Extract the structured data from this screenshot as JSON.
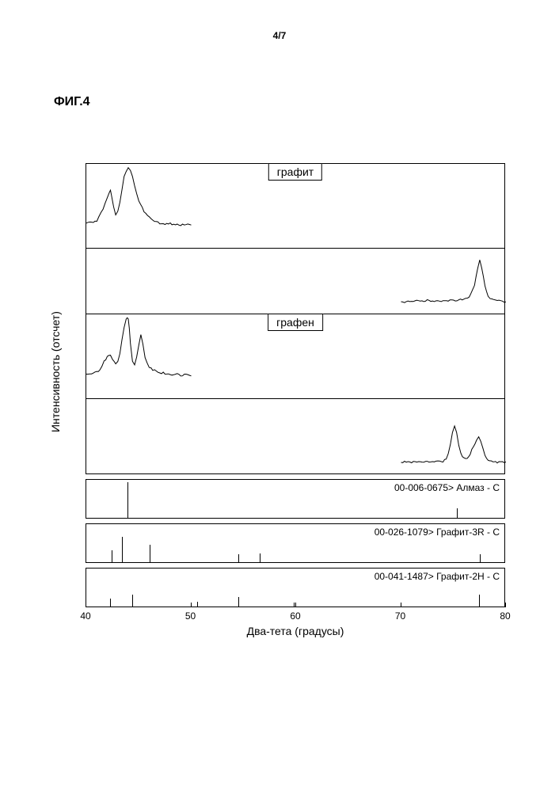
{
  "page_number": "4/7",
  "figure_label": "ФИГ.4",
  "y_axis_label": "Интенсивность (отсчет)",
  "x_axis_label": "Два-тета (градусы)",
  "x_range": [
    40,
    80
  ],
  "x_ticks": [
    40,
    50,
    60,
    70,
    80
  ],
  "panel_heights": {
    "p1": 108,
    "p2": 84,
    "p3": 108,
    "p4": 96,
    "ref1": 50,
    "ref2": 50,
    "ref3": 50
  },
  "panel_gaps": 6,
  "series_labels": {
    "graphite": "графит",
    "graphene": "графен"
  },
  "ref_labels": {
    "r1": "00-006-0675> Алмаз - С",
    "r2": "00-026-1079> Графит-3R - С",
    "r3": "00-041-1487> Графит-2H - С"
  },
  "trace_color": "#000000",
  "panel_border": "#000000",
  "background": "#ffffff",
  "label_fontsize": 14,
  "tick_fontsize": 12,
  "traces": {
    "p1": [
      [
        40,
        0.7
      ],
      [
        40.5,
        0.68
      ],
      [
        41,
        0.66
      ],
      [
        41.2,
        0.62
      ],
      [
        41.4,
        0.58
      ],
      [
        41.6,
        0.52
      ],
      [
        41.8,
        0.45
      ],
      [
        42.0,
        0.4
      ],
      [
        42.2,
        0.32
      ],
      [
        42.3,
        0.3
      ],
      [
        42.4,
        0.36
      ],
      [
        42.6,
        0.5
      ],
      [
        42.8,
        0.6
      ],
      [
        43.0,
        0.55
      ],
      [
        43.2,
        0.45
      ],
      [
        43.4,
        0.3
      ],
      [
        43.6,
        0.15
      ],
      [
        43.8,
        0.08
      ],
      [
        44.0,
        0.05
      ],
      [
        44.2,
        0.08
      ],
      [
        44.4,
        0.15
      ],
      [
        44.6,
        0.25
      ],
      [
        44.8,
        0.35
      ],
      [
        45.0,
        0.43
      ],
      [
        45.5,
        0.55
      ],
      [
        46.0,
        0.62
      ],
      [
        46.5,
        0.67
      ],
      [
        47.0,
        0.69
      ],
      [
        47.5,
        0.7
      ],
      [
        48.0,
        0.7
      ],
      [
        48.5,
        0.71
      ],
      [
        49.0,
        0.71
      ],
      [
        49.5,
        0.71
      ],
      [
        50.0,
        0.71
      ]
    ],
    "p2": [
      [
        70,
        0.8
      ],
      [
        70.5,
        0.8
      ],
      [
        71,
        0.79
      ],
      [
        71.5,
        0.78
      ],
      [
        72,
        0.79
      ],
      [
        72.5,
        0.78
      ],
      [
        73,
        0.79
      ],
      [
        73.5,
        0.78
      ],
      [
        74,
        0.79
      ],
      [
        74.5,
        0.78
      ],
      [
        75,
        0.78
      ],
      [
        75.5,
        0.77
      ],
      [
        76,
        0.76
      ],
      [
        76.5,
        0.72
      ],
      [
        77.0,
        0.55
      ],
      [
        77.3,
        0.3
      ],
      [
        77.5,
        0.18
      ],
      [
        77.7,
        0.3
      ],
      [
        78.0,
        0.55
      ],
      [
        78.3,
        0.72
      ],
      [
        78.5,
        0.76
      ],
      [
        79.0,
        0.78
      ],
      [
        79.5,
        0.79
      ],
      [
        80,
        0.8
      ]
    ],
    "p3": [
      [
        40,
        0.7
      ],
      [
        40.5,
        0.69
      ],
      [
        41,
        0.68
      ],
      [
        41.3,
        0.65
      ],
      [
        41.5,
        0.6
      ],
      [
        41.7,
        0.55
      ],
      [
        42.0,
        0.5
      ],
      [
        42.3,
        0.48
      ],
      [
        42.5,
        0.52
      ],
      [
        42.8,
        0.58
      ],
      [
        43.0,
        0.55
      ],
      [
        43.2,
        0.45
      ],
      [
        43.4,
        0.3
      ],
      [
        43.6,
        0.15
      ],
      [
        43.8,
        0.06
      ],
      [
        43.9,
        0.04
      ],
      [
        44.0,
        0.06
      ],
      [
        44.1,
        0.15
      ],
      [
        44.2,
        0.35
      ],
      [
        44.4,
        0.55
      ],
      [
        44.6,
        0.58
      ],
      [
        44.8,
        0.5
      ],
      [
        45.0,
        0.35
      ],
      [
        45.2,
        0.25
      ],
      [
        45.4,
        0.35
      ],
      [
        45.6,
        0.5
      ],
      [
        45.8,
        0.58
      ],
      [
        46.0,
        0.62
      ],
      [
        46.5,
        0.66
      ],
      [
        47.0,
        0.68
      ],
      [
        47.5,
        0.69
      ],
      [
        48.0,
        0.7
      ],
      [
        48.5,
        0.7
      ],
      [
        49.0,
        0.71
      ],
      [
        49.5,
        0.71
      ],
      [
        50.0,
        0.71
      ]
    ],
    "p4": [
      [
        70,
        0.83
      ],
      [
        70.5,
        0.82
      ],
      [
        71,
        0.83
      ],
      [
        71.5,
        0.82
      ],
      [
        72,
        0.83
      ],
      [
        72.5,
        0.82
      ],
      [
        73,
        0.82
      ],
      [
        73.5,
        0.81
      ],
      [
        74,
        0.82
      ],
      [
        74.3,
        0.78
      ],
      [
        74.5,
        0.72
      ],
      [
        74.7,
        0.6
      ],
      [
        74.9,
        0.45
      ],
      [
        75.1,
        0.35
      ],
      [
        75.3,
        0.45
      ],
      [
        75.5,
        0.6
      ],
      [
        75.7,
        0.72
      ],
      [
        76.0,
        0.78
      ],
      [
        76.3,
        0.78
      ],
      [
        76.6,
        0.72
      ],
      [
        76.9,
        0.62
      ],
      [
        77.2,
        0.55
      ],
      [
        77.4,
        0.5
      ],
      [
        77.6,
        0.55
      ],
      [
        77.8,
        0.65
      ],
      [
        78.0,
        0.74
      ],
      [
        78.3,
        0.8
      ],
      [
        78.6,
        0.82
      ],
      [
        79.0,
        0.83
      ],
      [
        79.5,
        0.83
      ],
      [
        80,
        0.83
      ]
    ]
  },
  "ref_sticks": {
    "r1": [
      [
        43.9,
        0.9
      ],
      [
        75.3,
        0.25
      ]
    ],
    "r2": [
      [
        42.4,
        0.3
      ],
      [
        43.4,
        0.65
      ],
      [
        46.0,
        0.45
      ],
      [
        54.5,
        0.2
      ],
      [
        56.5,
        0.22
      ],
      [
        77.5,
        0.2
      ]
    ],
    "r3": [
      [
        42.3,
        0.2
      ],
      [
        44.4,
        0.3
      ],
      [
        50.6,
        0.12
      ],
      [
        54.5,
        0.25
      ],
      [
        59.8,
        0.1
      ],
      [
        77.4,
        0.3
      ]
    ]
  }
}
